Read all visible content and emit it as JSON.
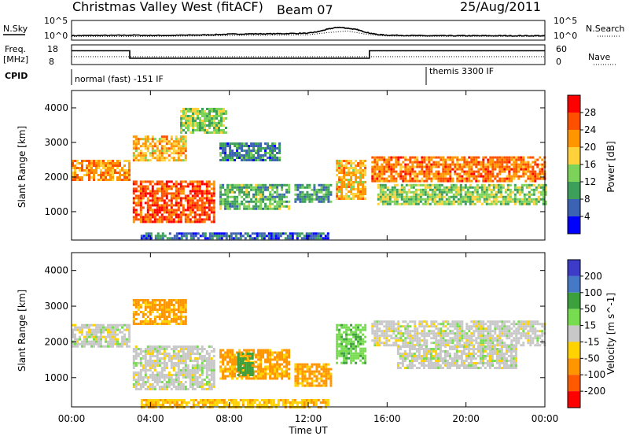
{
  "header": {
    "title": "Christmas Valley West (fitACF)",
    "beam": "Beam 07",
    "date": "25/Aug/2011"
  },
  "panels": {
    "nsky_label": "N.Sky",
    "nsearch_label": "N.Search",
    "noise_ticks": [
      "10^5",
      "10^0"
    ],
    "freq_label_1": "Freq.",
    "freq_label_2": "[MHz]",
    "freq_ticks": [
      "18",
      "8"
    ],
    "nave_label": "Nave",
    "nave_ticks": [
      "60",
      "0"
    ],
    "cpid_label": "CPID",
    "cpid_1": "normal (fast) -151 IF",
    "cpid_2": "themis 3300 IF"
  },
  "colors": {
    "power": [
      "#0000ff",
      "#3c62b4",
      "#3ca05a",
      "#7dd25a",
      "#ffd23c",
      "#ff9600",
      "#ff5000",
      "#ff0000"
    ],
    "velocity": [
      "#3c3cc8",
      "#4678c8",
      "#3ca03c",
      "#78dc50",
      "#c8c8c8",
      "#ffd200",
      "#ff9600",
      "#ff5a00",
      "#ff0000"
    ]
  },
  "chart_data": [
    {
      "type": "line",
      "name": "noise",
      "x_range_hours": [
        0,
        24
      ],
      "ylim_log10": [
        0,
        5
      ],
      "series": [
        {
          "name": "N.Sky",
          "x": [
            0,
            1,
            2,
            3,
            4,
            5,
            6,
            7,
            8,
            9,
            10,
            11,
            12,
            12.5,
            13,
            13.5,
            14,
            14.5,
            15,
            15.5,
            16,
            17,
            18,
            19,
            20,
            21,
            22,
            23,
            24
          ],
          "y": [
            0.9,
            1.0,
            1.0,
            1.1,
            1.0,
            1.0,
            1.1,
            1.2,
            1.4,
            1.5,
            1.5,
            1.6,
            1.7,
            2.2,
            3.0,
            3.6,
            3.3,
            2.8,
            1.9,
            1.3,
            1.1,
            1.0,
            0.9,
            0.9,
            0.9,
            0.9,
            0.9,
            0.9,
            0.9
          ]
        },
        {
          "name": "N.Search",
          "x": [
            0,
            2,
            4,
            6,
            8,
            10,
            12,
            13,
            14,
            15,
            16,
            18,
            20,
            22,
            24
          ],
          "y": [
            0.7,
            0.7,
            0.7,
            0.8,
            1.0,
            1.1,
            1.2,
            1.9,
            2.4,
            1.3,
            0.8,
            0.7,
            0.7,
            0.7,
            0.7
          ]
        }
      ]
    },
    {
      "type": "line",
      "name": "frequency",
      "ylim": [
        8,
        18
      ],
      "series": [
        {
          "name": "Freq.",
          "x": [
            0,
            2.95,
            2.95,
            15.1,
            15.1,
            24
          ],
          "y": [
            15,
            15,
            11.2,
            11.2,
            15,
            15
          ]
        }
      ],
      "nave_series": {
        "x": [
          0,
          24
        ],
        "y": [
          12,
          12
        ]
      }
    },
    {
      "type": "heatmap",
      "name": "power",
      "xlabel": "",
      "ylabel": "Slant Range [km]",
      "x_range_hours": [
        0,
        24
      ],
      "ylim": [
        180,
        4500
      ],
      "yticks": [
        1000,
        2000,
        3000,
        4000
      ],
      "colorbar_label": "Power [dB]",
      "colorbar_ticks": [
        "4",
        "8",
        "12",
        "16",
        "20",
        "24",
        "28"
      ],
      "features": [
        {
          "t": [
            0,
            2.9
          ],
          "range": [
            1900,
            2500
          ],
          "level": 22
        },
        {
          "t": [
            3.1,
            7.2
          ],
          "range": [
            700,
            1900
          ],
          "level": 26
        },
        {
          "t": [
            3.1,
            5.8
          ],
          "range": [
            2500,
            3200
          ],
          "level": 20
        },
        {
          "t": [
            5.5,
            7.8
          ],
          "range": [
            3300,
            4000
          ],
          "level": 14
        },
        {
          "t": [
            7.5,
            11.0
          ],
          "range": [
            1100,
            1800
          ],
          "level": 12
        },
        {
          "t": [
            7.5,
            10.5
          ],
          "range": [
            2500,
            3000
          ],
          "level": 8
        },
        {
          "t": [
            11.3,
            13.1
          ],
          "range": [
            1300,
            1800
          ],
          "level": 10
        },
        {
          "t": [
            13.4,
            14.9
          ],
          "range": [
            1400,
            2500
          ],
          "level": 20
        },
        {
          "t": [
            15.2,
            24.0
          ],
          "range": [
            1900,
            2600
          ],
          "level": 24
        },
        {
          "t": [
            15.5,
            24.0
          ],
          "range": [
            1200,
            1800
          ],
          "level": 14
        },
        {
          "t": [
            3.5,
            13.0
          ],
          "range": [
            200,
            400
          ],
          "level": 6
        }
      ]
    },
    {
      "type": "heatmap",
      "name": "velocity",
      "xlabel": "Time UT",
      "ylabel": "Slant Range [km]",
      "x_range_hours": [
        0,
        24
      ],
      "xticks": [
        "00:00",
        "04:00",
        "08:00",
        "12:00",
        "16:00",
        "20:00",
        "00:00"
      ],
      "ylim": [
        180,
        4500
      ],
      "yticks": [
        1000,
        2000,
        3000,
        4000
      ],
      "colorbar_label": "Velocity [m s^-1]",
      "colorbar_ticks": [
        "200",
        "100",
        "50",
        "15",
        "-15",
        "-50",
        "-100",
        "-200"
      ],
      "features": [
        {
          "t": [
            0,
            2.9
          ],
          "range": [
            1900,
            2500
          ],
          "velocity": 0
        },
        {
          "t": [
            3.1,
            7.2
          ],
          "range": [
            700,
            1900
          ],
          "velocity": 0
        },
        {
          "t": [
            3.1,
            5.8
          ],
          "range": [
            2500,
            3200
          ],
          "velocity": -60
        },
        {
          "t": [
            7.5,
            11.0
          ],
          "range": [
            1000,
            1800
          ],
          "velocity": -60
        },
        {
          "t": [
            8.4,
            9.2
          ],
          "range": [
            1100,
            1700
          ],
          "velocity": 80
        },
        {
          "t": [
            11.3,
            13.1
          ],
          "range": [
            800,
            1400
          ],
          "velocity": -60
        },
        {
          "t": [
            13.4,
            14.9
          ],
          "range": [
            1400,
            2500
          ],
          "velocity": 40
        },
        {
          "t": [
            15.2,
            24.0
          ],
          "range": [
            1900,
            2600
          ],
          "velocity": 0
        },
        {
          "t": [
            16.5,
            22.5
          ],
          "range": [
            1300,
            1900
          ],
          "velocity": 0
        },
        {
          "t": [
            3.5,
            13.0
          ],
          "range": [
            200,
            400
          ],
          "velocity": -40
        }
      ]
    }
  ]
}
